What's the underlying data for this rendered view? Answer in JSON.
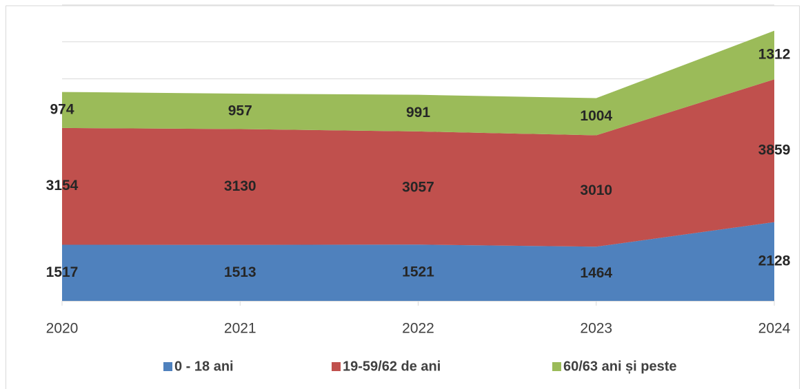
{
  "chart_data": {
    "type": "stacked_area",
    "categories": [
      "2020",
      "2021",
      "2022",
      "2023",
      "2024"
    ],
    "series": [
      {
        "name": "0 - 18 ani",
        "color": "#4f81bd",
        "values": [
          1517,
          1513,
          1521,
          1464,
          2128
        ]
      },
      {
        "name": "19-59/62 de ani",
        "color": "#c0504d",
        "values": [
          3154,
          3130,
          3057,
          3010,
          3859
        ]
      },
      {
        "name": "60/63 ani și peste",
        "color": "#9bbb59",
        "values": [
          974,
          957,
          991,
          1004,
          1312
        ]
      }
    ],
    "ylim": [
      0,
      8000
    ],
    "yticks": [
      0,
      1000,
      2000,
      3000,
      4000,
      5000,
      6000,
      7000,
      8000
    ],
    "grid": true,
    "legend": "bottom"
  }
}
